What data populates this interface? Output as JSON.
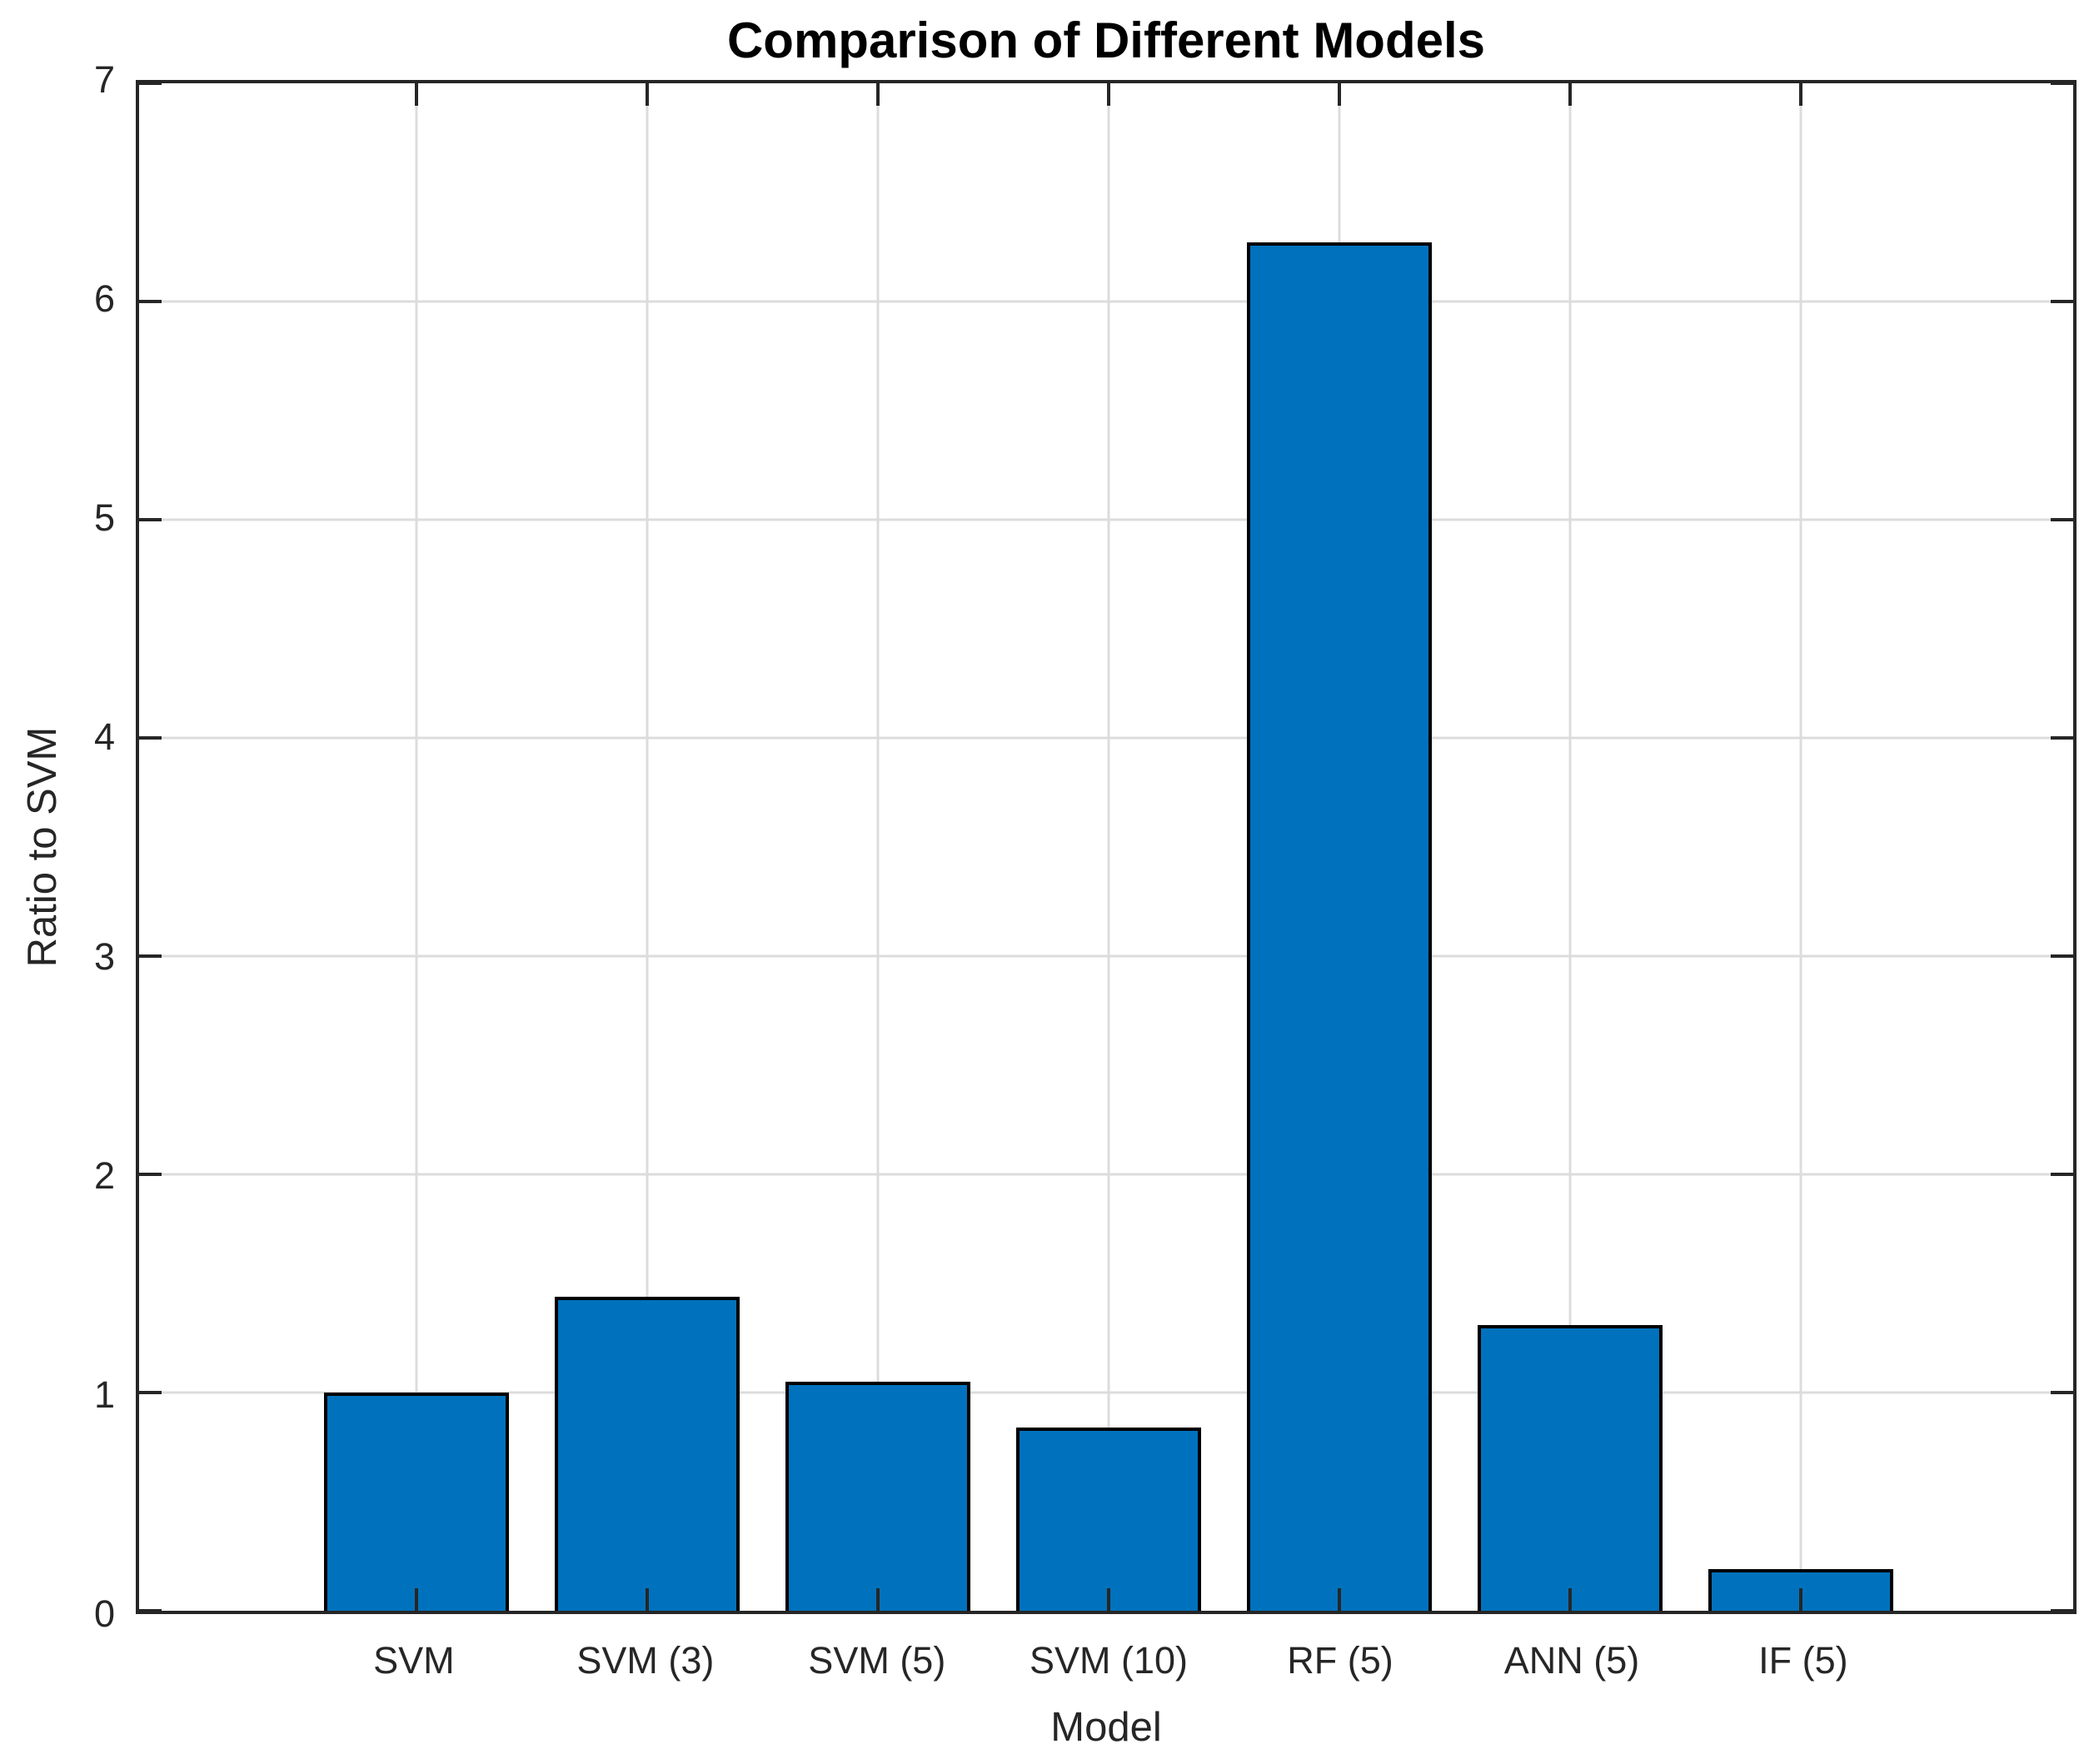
{
  "chart_data": {
    "type": "bar",
    "title": "Comparison of Different Models",
    "xlabel": "Model",
    "ylabel": "Ratio to SVM",
    "categories": [
      "SVM",
      "SVM (3)",
      "SVM (5)",
      "SVM (10)",
      "RF (5)",
      "ANN (5)",
      "IF (5)"
    ],
    "values": [
      1.0,
      1.44,
      1.05,
      0.84,
      6.27,
      1.31,
      0.19
    ],
    "ylim": [
      0,
      7
    ],
    "yticks": [
      0,
      1,
      2,
      3,
      4,
      5,
      6,
      7
    ],
    "grid": true,
    "legend": "none",
    "colors": {
      "bar_fill": "#0072BD",
      "bar_edge": "#000000",
      "axis": "#262626",
      "grid": "#dcdcdc",
      "tick_text": "#262626",
      "title_text": "#000000",
      "background": "#ffffff"
    }
  }
}
